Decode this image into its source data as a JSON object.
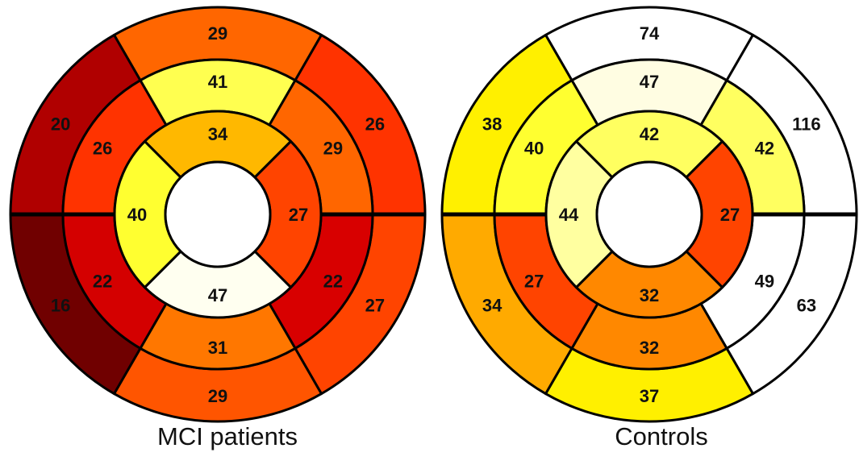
{
  "chart_data": [
    {
      "type": "bullseye",
      "title": "MCI patients",
      "outer": [
        {
          "pos": "top",
          "value": 29,
          "color": "#FF6600"
        },
        {
          "pos": "upper-right",
          "value": 26,
          "color": "#FF3300"
        },
        {
          "pos": "lower-right",
          "value": 27,
          "color": "#FF4400"
        },
        {
          "pos": "bottom",
          "value": 29,
          "color": "#FF5500"
        },
        {
          "pos": "lower-left",
          "value": 16,
          "color": "#700000"
        },
        {
          "pos": "upper-left",
          "value": 20,
          "color": "#B00000"
        }
      ],
      "middle": [
        {
          "pos": "top",
          "value": 41,
          "color": "#FFFF50"
        },
        {
          "pos": "upper-right",
          "value": 29,
          "color": "#FF6600"
        },
        {
          "pos": "lower-right",
          "value": 22,
          "color": "#D80000"
        },
        {
          "pos": "bottom",
          "value": 31,
          "color": "#FF7700"
        },
        {
          "pos": "lower-left",
          "value": 22,
          "color": "#D40000"
        },
        {
          "pos": "upper-left",
          "value": 26,
          "color": "#FF3300"
        }
      ],
      "inner": [
        {
          "pos": "top",
          "value": 34,
          "color": "#FFB800"
        },
        {
          "pos": "right",
          "value": 27,
          "color": "#FF4400"
        },
        {
          "pos": "bottom",
          "value": 47,
          "color": "#FFFFF0"
        },
        {
          "pos": "left",
          "value": 40,
          "color": "#FFFF30"
        }
      ]
    },
    {
      "type": "bullseye",
      "title": "Controls",
      "outer": [
        {
          "pos": "top",
          "value": 74,
          "color": "#FFFFFF"
        },
        {
          "pos": "upper-right",
          "value": 116,
          "color": "#FFFFFF"
        },
        {
          "pos": "lower-right",
          "value": 63,
          "color": "#FFFFFF"
        },
        {
          "pos": "bottom",
          "value": 37,
          "color": "#FFF000"
        },
        {
          "pos": "lower-left",
          "value": 34,
          "color": "#FFAA00"
        },
        {
          "pos": "upper-left",
          "value": 38,
          "color": "#FFF000"
        }
      ],
      "middle": [
        {
          "pos": "top",
          "value": 47,
          "color": "#FFFDE2"
        },
        {
          "pos": "upper-right",
          "value": 42,
          "color": "#FFFF60"
        },
        {
          "pos": "lower-right",
          "value": 49,
          "color": "#FFFFFF"
        },
        {
          "pos": "bottom",
          "value": 32,
          "color": "#FF8800"
        },
        {
          "pos": "lower-left",
          "value": 27,
          "color": "#FF4400"
        },
        {
          "pos": "upper-left",
          "value": 40,
          "color": "#FFFF30"
        }
      ],
      "inner": [
        {
          "pos": "top",
          "value": 42,
          "color": "#FFFF60"
        },
        {
          "pos": "right",
          "value": 27,
          "color": "#FF4400"
        },
        {
          "pos": "bottom",
          "value": 32,
          "color": "#FF8800"
        },
        {
          "pos": "left",
          "value": 44,
          "color": "#FFFFA0"
        }
      ]
    }
  ]
}
